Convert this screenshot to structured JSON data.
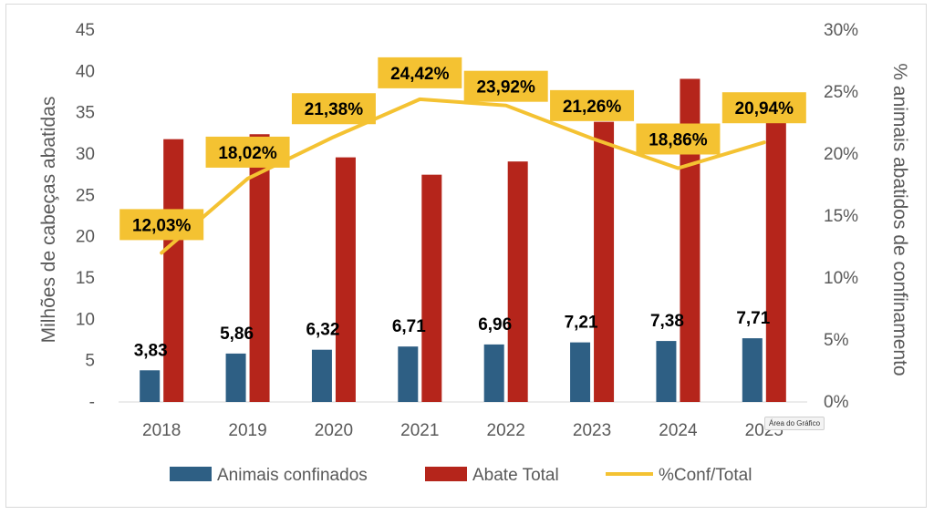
{
  "chart_data": {
    "type": "bar",
    "categories": [
      "2018",
      "2019",
      "2020",
      "2021",
      "2022",
      "2023",
      "2024",
      "2025"
    ],
    "series": [
      {
        "name": "Animais confinados",
        "type": "bar",
        "axis": "left",
        "color": "#2e5f84",
        "values": [
          3.83,
          5.86,
          6.32,
          6.71,
          6.96,
          7.21,
          7.38,
          7.71
        ],
        "labels": [
          "3,83",
          "5,86",
          "6,32",
          "6,71",
          "6,96",
          "7,21",
          "7,38",
          "7,71"
        ]
      },
      {
        "name": "Abate Total",
        "type": "bar",
        "axis": "left",
        "color": "#b5251b",
        "values": [
          31.8,
          32.4,
          29.6,
          27.5,
          29.1,
          33.9,
          39.1,
          36.8
        ]
      },
      {
        "name": "%Conf/Total",
        "type": "line",
        "axis": "right",
        "color": "#f4c232",
        "values": [
          12.03,
          18.02,
          21.38,
          24.42,
          23.92,
          21.26,
          18.86,
          20.94
        ],
        "labels": [
          "12,03%",
          "18,02%",
          "21,38%",
          "24,42%",
          "23,92%",
          "21,26%",
          "18,86%",
          "20,94%"
        ]
      }
    ],
    "ylabel": "Milhões de cabeças abatidas",
    "y2label": "% animais abatidos de confinamento",
    "ylim": [
      0,
      45
    ],
    "y2lim": [
      0,
      30
    ],
    "yticks": [
      "-",
      "5",
      "10",
      "15",
      "20",
      "25",
      "30",
      "35",
      "40",
      "45"
    ],
    "y2ticks": [
      "0%",
      "5%",
      "10%",
      "15%",
      "20%",
      "25%",
      "30%"
    ],
    "grid": false,
    "legend": "bottom"
  },
  "tooltip": "Área do Gráfico"
}
